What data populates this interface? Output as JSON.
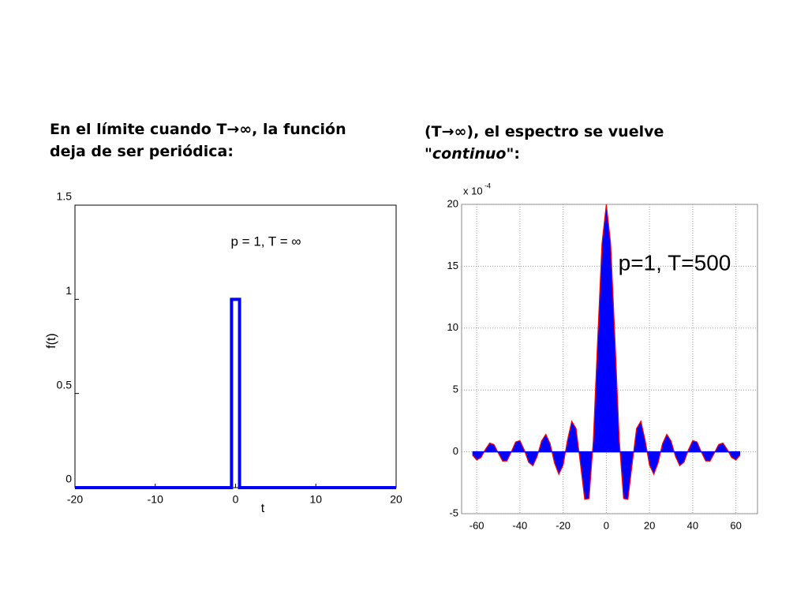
{
  "slide": {
    "left_text": [
      "En el límite cuando T→∞, la función",
      "deja de ser periódica:"
    ],
    "right_text": {
      "line1": "(T→∞), el espectro se vuelve",
      "quote_open": "\"",
      "emphasis": "continuo",
      "quote_close": "\":"
    }
  },
  "chart_data": [
    {
      "type": "line",
      "xlabel": "t",
      "ylabel": "f(t)",
      "annotation": "p = 1, T = ∞",
      "x": [
        -20,
        -0.5,
        -0.5,
        0.5,
        0.5,
        20
      ],
      "values": [
        0,
        0,
        1,
        1,
        0,
        0
      ],
      "color": "#0000ff",
      "xlim": [
        -20,
        20
      ],
      "ylim": [
        0,
        1.5
      ],
      "xticks": [
        -20,
        -10,
        0,
        10,
        20
      ],
      "yticks": [
        0,
        0.5,
        1,
        1.5
      ],
      "grid": false
    },
    {
      "type": "area",
      "annotation": "p=1, T=500",
      "scale_label": "x 10",
      "scale_exponent": "-4",
      "x": [
        -62,
        -60,
        -58,
        -56,
        -54,
        -52,
        -50,
        -48,
        -46,
        -44,
        -42,
        -40,
        -38,
        -36,
        -34,
        -32,
        -30,
        -28,
        -26,
        -24,
        -22,
        -20,
        -18,
        -16,
        -14,
        -12,
        -10,
        -8,
        -6,
        -4,
        -2,
        0,
        2,
        4,
        6,
        8,
        10,
        12,
        14,
        16,
        18,
        20,
        22,
        24,
        26,
        28,
        30,
        32,
        34,
        36,
        38,
        40,
        42,
        44,
        46,
        48,
        50,
        52,
        54,
        56,
        58,
        60,
        62
      ],
      "values": [
        -0.26,
        -0.66,
        -0.46,
        0.19,
        0.71,
        0.59,
        -0.11,
        -0.75,
        -0.74,
        -0.01,
        0.8,
        0.91,
        0.16,
        -0.83,
        -1.13,
        -0.36,
        0.87,
        1.42,
        0.65,
        -0.89,
        -1.82,
        -1.09,
        0.92,
        2.47,
        1.88,
        -0.93,
        -3.84,
        -3.78,
        0.94,
        9.09,
        16.83,
        20,
        16.83,
        9.09,
        0.94,
        -3.78,
        -3.84,
        -0.93,
        1.88,
        2.47,
        0.92,
        -1.09,
        -1.82,
        -0.89,
        0.65,
        1.42,
        0.87,
        -0.36,
        -1.13,
        -0.83,
        0.16,
        0.91,
        0.8,
        -0.01,
        -0.74,
        -0.75,
        -0.11,
        0.59,
        0.71,
        0.19,
        -0.46,
        -0.66,
        -0.26
      ],
      "color": "#0000ff",
      "edge_color": "#ff0000",
      "xlim": [
        -67,
        70
      ],
      "ylim": [
        -5,
        20
      ],
      "xticks": [
        -60,
        -40,
        -20,
        0,
        20,
        40,
        60
      ],
      "yticks": [
        -5,
        0,
        5,
        10,
        15,
        20
      ],
      "grid": true
    }
  ]
}
